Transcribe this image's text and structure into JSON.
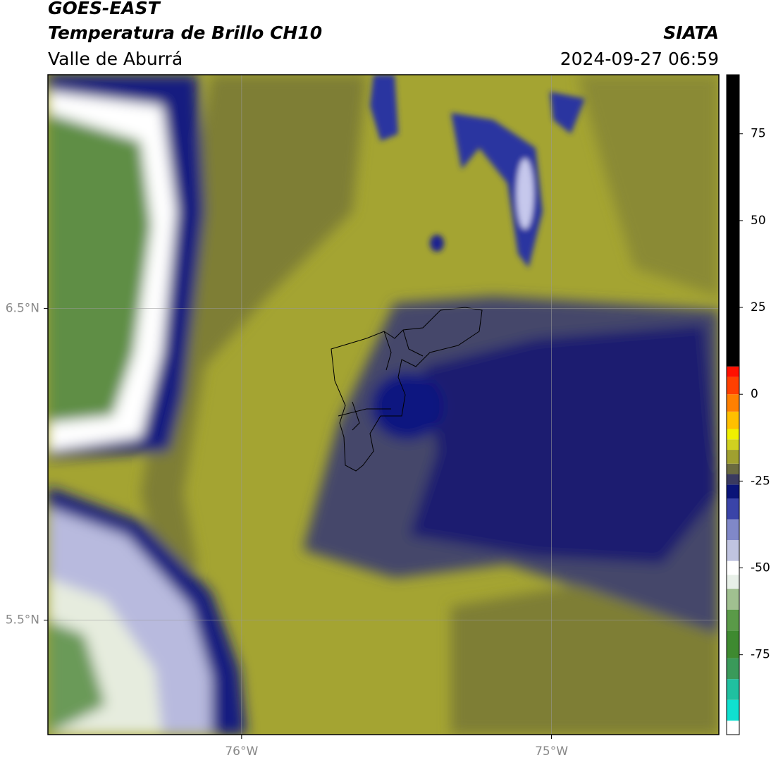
{
  "header": {
    "title": "GOES-EAST",
    "subtitle": "Temperatura de Brillo CH10",
    "region": "Valle de Aburrá",
    "source": "SIATA",
    "timestamp": "2024-09-27 06:59"
  },
  "map": {
    "xlim": [
      -76.625,
      -74.46
    ],
    "ylim": [
      5.133,
      7.25
    ],
    "xticks": [
      {
        "value": -76,
        "label": "76°W"
      },
      {
        "value": -75,
        "label": "75°W"
      }
    ],
    "yticks": [
      {
        "value": 6.5,
        "label": "6.5°N"
      },
      {
        "value": 5.5,
        "label": "5.5°N"
      }
    ],
    "grid": true
  },
  "colorbar": {
    "clim": [
      -98,
      92
    ],
    "ticks": [
      75,
      50,
      25,
      0,
      -25,
      -50,
      -75
    ],
    "stops": [
      {
        "value": -98,
        "color": "#ffffff"
      },
      {
        "value": -94,
        "color": "#10e0d0"
      },
      {
        "value": -88,
        "color": "#20c0a0"
      },
      {
        "value": -82,
        "color": "#3a9a5a"
      },
      {
        "value": -76,
        "color": "#3e8a30"
      },
      {
        "value": -68,
        "color": "#5a9a48"
      },
      {
        "value": -62,
        "color": "#a0c090"
      },
      {
        "value": -56,
        "color": "#e8f0e8"
      },
      {
        "value": -52,
        "color": "#ffffff"
      },
      {
        "value": -48,
        "color": "#c0c4e0"
      },
      {
        "value": -42,
        "color": "#8088c8"
      },
      {
        "value": -36,
        "color": "#3a44a8"
      },
      {
        "value": -30,
        "color": "#0a1478"
      },
      {
        "value": -26,
        "color": "#3a3a60"
      },
      {
        "value": -23,
        "color": "#6a6a40"
      },
      {
        "value": -20,
        "color": "#a0a030"
      },
      {
        "value": -16,
        "color": "#d0d020"
      },
      {
        "value": -13,
        "color": "#f0f000"
      },
      {
        "value": -10,
        "color": "#ffc000"
      },
      {
        "value": -5,
        "color": "#ff8000"
      },
      {
        "value": 0,
        "color": "#ff4000"
      },
      {
        "value": 5,
        "color": "#ff1000"
      },
      {
        "value": 8,
        "color": "#000000"
      }
    ]
  }
}
